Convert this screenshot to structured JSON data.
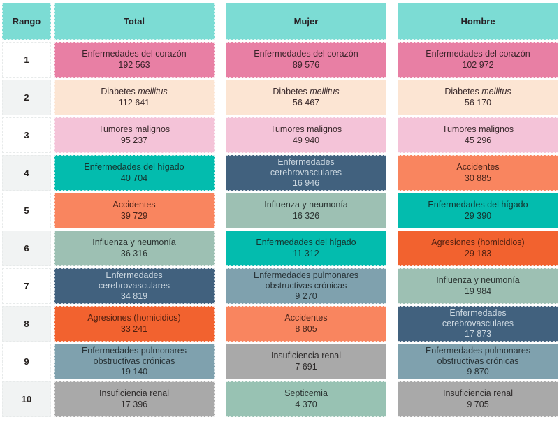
{
  "header": {
    "rank": "Rango",
    "columns": [
      "Total",
      "Mujer",
      "Hombre"
    ]
  },
  "ranks": [
    "1",
    "2",
    "3",
    "4",
    "5",
    "6",
    "7",
    "8",
    "9",
    "10"
  ],
  "colors": {
    "header_bg": "#7cdcd4",
    "header_fg": "#272226",
    "rank_odd_bg": "#ffffff",
    "rank_even_bg": "#f1f3f3",
    "page_bg": "#ffffff"
  },
  "causes": {
    "heart": {
      "label": "Enfermedades del corazón",
      "bg": "#e87fa4",
      "fg": "#3a2329"
    },
    "diabetes": {
      "label": "Diabetes mellitus",
      "italic": "mellitus",
      "bg": "#fce5d3",
      "fg": "#3a2a2c"
    },
    "tumors": {
      "label": "Tumores malignos",
      "bg": "#f4c3d8",
      "fg": "#3a2a2c"
    },
    "liver": {
      "label": "Enfermedades del hígado",
      "bg": "#03bcae",
      "fg": "#15332f"
    },
    "accidents": {
      "label": "Accidentes",
      "bg": "#f9855f",
      "fg": "#4a241a"
    },
    "influenza": {
      "label": "Influenza y neumonía",
      "bg": "#9dc0b3",
      "fg": "#2c3533"
    },
    "cerebrovascular": {
      "label": "Enfermedades cerebrovasculares",
      "bg": "#41617e",
      "fg": "#cbd7e0"
    },
    "aggressions": {
      "label": "Agresiones (homicidios)",
      "bg": "#f2622f",
      "fg": "#4f1f10"
    },
    "copd": {
      "label": "Enfermedades pulmonares obstructivas crónicas",
      "bg": "#7fa1ae",
      "fg": "#283337"
    },
    "renal": {
      "label": "Insuficiencia renal",
      "bg": "#a9a9a9",
      "fg": "#2e2b2b"
    },
    "septicemia": {
      "label": "Septicemia",
      "bg": "#98c2b3",
      "fg": "#2c3533"
    }
  },
  "columns": [
    {
      "label": "Total",
      "rows": [
        {
          "cause": "heart",
          "value": "192 563"
        },
        {
          "cause": "diabetes",
          "value": "112 641"
        },
        {
          "cause": "tumors",
          "value": "95 237"
        },
        {
          "cause": "liver",
          "value": "40 704"
        },
        {
          "cause": "accidents",
          "value": "39 729"
        },
        {
          "cause": "influenza",
          "value": "36 316"
        },
        {
          "cause": "cerebrovascular",
          "value": "34 819"
        },
        {
          "cause": "aggressions",
          "value": "33 241"
        },
        {
          "cause": "copd",
          "value": "19 140"
        },
        {
          "cause": "renal",
          "value": "17 396"
        }
      ]
    },
    {
      "label": "Mujer",
      "rows": [
        {
          "cause": "heart",
          "value": "89 576"
        },
        {
          "cause": "diabetes",
          "value": "56 467"
        },
        {
          "cause": "tumors",
          "value": "49 940"
        },
        {
          "cause": "cerebrovascular",
          "value": "16 946"
        },
        {
          "cause": "influenza",
          "value": "16 326"
        },
        {
          "cause": "liver",
          "value": "11 312"
        },
        {
          "cause": "copd",
          "value": "9 270"
        },
        {
          "cause": "accidents",
          "value": "8 805"
        },
        {
          "cause": "renal",
          "value": "7 691"
        },
        {
          "cause": "septicemia",
          "value": "4 370"
        }
      ]
    },
    {
      "label": "Hombre",
      "rows": [
        {
          "cause": "heart",
          "value": "102 972"
        },
        {
          "cause": "diabetes",
          "value": "56 170"
        },
        {
          "cause": "tumors",
          "value": "45 296"
        },
        {
          "cause": "accidents",
          "value": "30 885"
        },
        {
          "cause": "liver",
          "value": "29 390"
        },
        {
          "cause": "aggressions",
          "value": "29 183"
        },
        {
          "cause": "influenza",
          "value": "19 984"
        },
        {
          "cause": "cerebrovascular",
          "value": "17 873"
        },
        {
          "cause": "copd",
          "value": "9 870"
        },
        {
          "cause": "renal",
          "value": "9 705"
        }
      ]
    }
  ],
  "chart_data": {
    "type": "table",
    "title": "",
    "columns": [
      "Rango",
      "Total",
      "Mujer",
      "Hombre"
    ],
    "rank_column": "Rango",
    "groups": [
      {
        "name": "Total",
        "ranking": [
          {
            "rank": 1,
            "cause": "Enfermedades del corazón",
            "deaths": 192563
          },
          {
            "rank": 2,
            "cause": "Diabetes mellitus",
            "deaths": 112641
          },
          {
            "rank": 3,
            "cause": "Tumores malignos",
            "deaths": 95237
          },
          {
            "rank": 4,
            "cause": "Enfermedades del hígado",
            "deaths": 40704
          },
          {
            "rank": 5,
            "cause": "Accidentes",
            "deaths": 39729
          },
          {
            "rank": 6,
            "cause": "Influenza y neumonía",
            "deaths": 36316
          },
          {
            "rank": 7,
            "cause": "Enfermedades cerebrovasculares",
            "deaths": 34819
          },
          {
            "rank": 8,
            "cause": "Agresiones (homicidios)",
            "deaths": 33241
          },
          {
            "rank": 9,
            "cause": "Enfermedades pulmonares obstructivas crónicas",
            "deaths": 19140
          },
          {
            "rank": 10,
            "cause": "Insuficiencia renal",
            "deaths": 17396
          }
        ]
      },
      {
        "name": "Mujer",
        "ranking": [
          {
            "rank": 1,
            "cause": "Enfermedades del corazón",
            "deaths": 89576
          },
          {
            "rank": 2,
            "cause": "Diabetes mellitus",
            "deaths": 56467
          },
          {
            "rank": 3,
            "cause": "Tumores malignos",
            "deaths": 49940
          },
          {
            "rank": 4,
            "cause": "Enfermedades cerebrovasculares",
            "deaths": 16946
          },
          {
            "rank": 5,
            "cause": "Influenza y neumonía",
            "deaths": 16326
          },
          {
            "rank": 6,
            "cause": "Enfermedades del hígado",
            "deaths": 11312
          },
          {
            "rank": 7,
            "cause": "Enfermedades pulmonares obstructivas crónicas",
            "deaths": 9270
          },
          {
            "rank": 8,
            "cause": "Accidentes",
            "deaths": 8805
          },
          {
            "rank": 9,
            "cause": "Insuficiencia renal",
            "deaths": 7691
          },
          {
            "rank": 10,
            "cause": "Septicemia",
            "deaths": 4370
          }
        ]
      },
      {
        "name": "Hombre",
        "ranking": [
          {
            "rank": 1,
            "cause": "Enfermedades del corazón",
            "deaths": 102972
          },
          {
            "rank": 2,
            "cause": "Diabetes mellitus",
            "deaths": 56170
          },
          {
            "rank": 3,
            "cause": "Tumores malignos",
            "deaths": 45296
          },
          {
            "rank": 4,
            "cause": "Accidentes",
            "deaths": 30885
          },
          {
            "rank": 5,
            "cause": "Enfermedades del hígado",
            "deaths": 29390
          },
          {
            "rank": 6,
            "cause": "Agresiones (homicidios)",
            "deaths": 29183
          },
          {
            "rank": 7,
            "cause": "Influenza y neumonía",
            "deaths": 19984
          },
          {
            "rank": 8,
            "cause": "Enfermedades cerebrovasculares",
            "deaths": 17873
          },
          {
            "rank": 9,
            "cause": "Enfermedades pulmonares obstructivas crónicas",
            "deaths": 9870
          },
          {
            "rank": 10,
            "cause": "Insuficiencia renal",
            "deaths": 9705
          }
        ]
      }
    ]
  }
}
